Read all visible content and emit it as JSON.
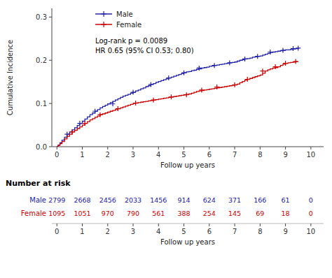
{
  "chart_data": {
    "type": "step",
    "xlabel": "Follow up years",
    "ylabel": "Cumulative Incidence",
    "xlim": [
      -0.2,
      10.5
    ],
    "ylim": [
      0.0,
      0.32
    ],
    "xticks": [
      0,
      1,
      2,
      3,
      4,
      5,
      6,
      7,
      8,
      9,
      10
    ],
    "yticks": [
      {
        "value": 0.0,
        "label": "0.0"
      },
      0.1,
      0.2,
      0.3
    ],
    "grid": false,
    "legend": "upper left",
    "marker": "+",
    "annotations": [
      "Log-rank  p = 0.0089",
      "HR 0.65 (95% CI 0.53; 0.80)"
    ],
    "risk_table_title": "Number at risk",
    "at_risk_x": [
      0,
      1,
      2,
      3,
      4,
      5,
      6,
      7,
      8,
      9,
      10
    ],
    "series": [
      {
        "name": "Male",
        "color": "#2222aa",
        "x": [
          0.0,
          0.05,
          0.12,
          0.2,
          0.3,
          0.4,
          0.5,
          0.6,
          0.7,
          0.8,
          0.9,
          1.0,
          1.1,
          1.2,
          1.3,
          1.4,
          1.5,
          1.6,
          1.7,
          1.8,
          1.9,
          2.0,
          2.1,
          2.2,
          2.3,
          2.4,
          2.5,
          2.6,
          2.7,
          2.8,
          2.9,
          3.0,
          3.1,
          3.2,
          3.3,
          3.4,
          3.5,
          3.6,
          3.7,
          3.8,
          3.9,
          4.0,
          4.1,
          4.2,
          4.3,
          4.4,
          4.5,
          4.6,
          4.7,
          4.8,
          4.9,
          5.0,
          5.1,
          5.2,
          5.3,
          5.4,
          5.5,
          5.6,
          5.7,
          5.8,
          5.9,
          6.0,
          6.1,
          6.2,
          6.3,
          6.4,
          6.5,
          6.6,
          6.7,
          6.8,
          6.9,
          7.0,
          7.1,
          7.2,
          7.3,
          7.4,
          7.5,
          7.6,
          7.7,
          7.8,
          7.9,
          8.0,
          8.1,
          8.2,
          8.3,
          8.4,
          8.5,
          8.6,
          8.7,
          8.8,
          8.9,
          9.0,
          9.1,
          9.2,
          9.3,
          9.4,
          9.5
        ],
        "values": [
          0.0,
          0.004,
          0.009,
          0.015,
          0.022,
          0.029,
          0.034,
          0.039,
          0.044,
          0.049,
          0.054,
          0.059,
          0.064,
          0.069,
          0.074,
          0.078,
          0.082,
          0.086,
          0.09,
          0.093,
          0.096,
          0.099,
          0.102,
          0.105,
          0.108,
          0.111,
          0.114,
          0.117,
          0.119,
          0.121,
          0.124,
          0.126,
          0.129,
          0.131,
          0.134,
          0.136,
          0.139,
          0.141,
          0.144,
          0.146,
          0.149,
          0.151,
          0.153,
          0.155,
          0.157,
          0.159,
          0.161,
          0.163,
          0.165,
          0.167,
          0.169,
          0.171,
          0.173,
          0.174,
          0.176,
          0.177,
          0.179,
          0.18,
          0.182,
          0.183,
          0.184,
          0.186,
          0.187,
          0.188,
          0.189,
          0.19,
          0.191,
          0.192,
          0.193,
          0.194,
          0.195,
          0.196,
          0.198,
          0.2,
          0.201,
          0.203,
          0.204,
          0.205,
          0.207,
          0.208,
          0.209,
          0.21,
          0.212,
          0.214,
          0.216,
          0.218,
          0.219,
          0.22,
          0.221,
          0.222,
          0.223,
          0.224,
          0.224,
          0.225,
          0.226,
          0.227,
          0.228
        ],
        "censor_x": [
          0.4,
          0.9,
          1.5,
          2.2,
          3.0,
          3.7,
          4.4,
          5.0,
          5.6,
          6.2,
          6.8,
          7.4,
          7.9,
          8.4,
          8.9,
          9.3,
          9.5
        ],
        "censor_values": [
          0.029,
          0.054,
          0.082,
          0.099,
          0.126,
          0.144,
          0.159,
          0.171,
          0.182,
          0.188,
          0.194,
          0.203,
          0.209,
          0.219,
          0.223,
          0.227,
          0.228
        ],
        "at_risk": [
          2799,
          2668,
          2456,
          2033,
          1456,
          914,
          624,
          371,
          166,
          61,
          0
        ]
      },
      {
        "name": "Female",
        "color": "#cc0000",
        "x": [
          0.0,
          0.05,
          0.12,
          0.2,
          0.3,
          0.4,
          0.5,
          0.6,
          0.7,
          0.8,
          0.9,
          1.0,
          1.1,
          1.2,
          1.3,
          1.4,
          1.5,
          1.6,
          1.7,
          1.8,
          1.9,
          2.0,
          2.1,
          2.2,
          2.3,
          2.4,
          2.5,
          2.6,
          2.7,
          2.8,
          2.9,
          3.0,
          3.1,
          3.2,
          3.3,
          3.4,
          3.5,
          3.6,
          3.7,
          3.8,
          3.9,
          4.0,
          4.1,
          4.2,
          4.3,
          4.4,
          4.5,
          4.6,
          4.7,
          4.8,
          4.9,
          5.0,
          5.1,
          5.2,
          5.3,
          5.4,
          5.5,
          5.6,
          5.7,
          5.8,
          5.9,
          6.0,
          6.1,
          6.2,
          6.3,
          6.4,
          6.5,
          6.6,
          6.7,
          6.8,
          6.9,
          7.0,
          7.1,
          7.2,
          7.3,
          7.4,
          7.5,
          7.6,
          7.7,
          7.8,
          7.9,
          8.0,
          8.1,
          8.2,
          8.3,
          8.4,
          8.5,
          8.6,
          8.7,
          8.8,
          8.9,
          9.0,
          9.1,
          9.2,
          9.3,
          9.4,
          9.5
        ],
        "values": [
          0.0,
          0.003,
          0.007,
          0.012,
          0.018,
          0.024,
          0.029,
          0.034,
          0.038,
          0.042,
          0.046,
          0.05,
          0.054,
          0.058,
          0.062,
          0.065,
          0.068,
          0.071,
          0.074,
          0.076,
          0.078,
          0.08,
          0.082,
          0.084,
          0.086,
          0.088,
          0.09,
          0.092,
          0.094,
          0.096,
          0.098,
          0.1,
          0.101,
          0.102,
          0.103,
          0.104,
          0.105,
          0.106,
          0.107,
          0.108,
          0.109,
          0.11,
          0.111,
          0.112,
          0.113,
          0.114,
          0.115,
          0.116,
          0.117,
          0.118,
          0.119,
          0.12,
          0.121,
          0.122,
          0.124,
          0.126,
          0.128,
          0.129,
          0.13,
          0.131,
          0.132,
          0.133,
          0.134,
          0.135,
          0.136,
          0.137,
          0.138,
          0.139,
          0.14,
          0.141,
          0.142,
          0.143,
          0.145,
          0.148,
          0.151,
          0.154,
          0.156,
          0.158,
          0.16,
          0.162,
          0.164,
          0.166,
          0.17,
          0.175,
          0.178,
          0.18,
          0.182,
          0.183,
          0.185,
          0.188,
          0.191,
          0.193,
          0.194,
          0.195,
          0.196,
          0.197,
          0.197
        ],
        "censor_x": [
          0.6,
          1.1,
          1.7,
          2.4,
          3.1,
          3.8,
          4.5,
          5.1,
          5.7,
          6.3,
          7.0,
          7.5,
          8.1,
          8.6,
          9.0,
          9.4
        ],
        "censor_values": [
          0.034,
          0.054,
          0.074,
          0.088,
          0.101,
          0.108,
          0.115,
          0.12,
          0.131,
          0.138,
          0.143,
          0.156,
          0.175,
          0.185,
          0.193,
          0.197
        ],
        "at_risk": [
          1095,
          1051,
          970,
          790,
          561,
          388,
          254,
          145,
          69,
          18,
          0
        ]
      }
    ]
  }
}
